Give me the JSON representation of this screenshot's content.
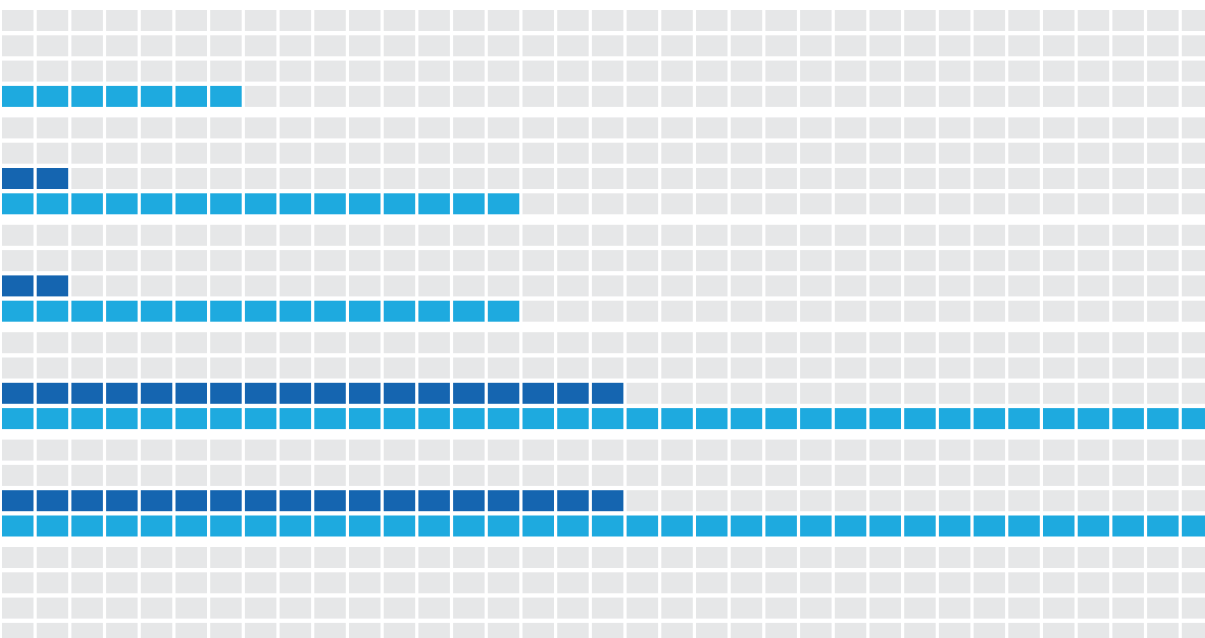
{
  "chart_data": {
    "type": "unit",
    "xlim": [
      0,
      35
    ],
    "empty_color": "#e6e7e8",
    "series": [
      {
        "color": "#1565b0",
        "values": [
          0,
          2,
          2,
          18,
          18,
          0
        ]
      },
      {
        "color": "#1eaadf",
        "values": [
          7,
          15,
          15,
          35,
          35,
          0
        ]
      }
    ]
  }
}
